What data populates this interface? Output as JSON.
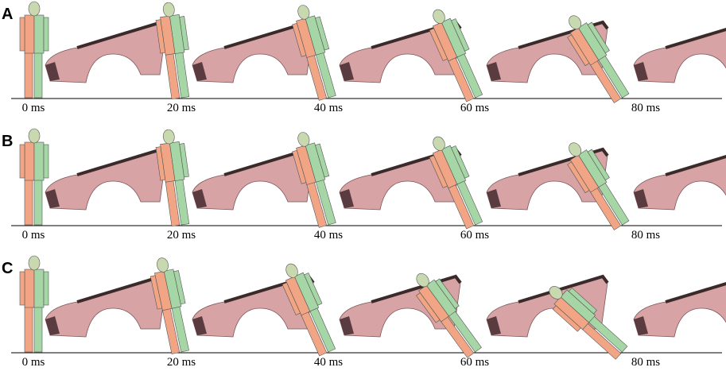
{
  "panels": [
    {
      "label": "A",
      "frames": [
        "0 ms",
        "20 ms",
        "40 ms",
        "60 ms",
        "80 ms"
      ]
    },
    {
      "label": "B",
      "frames": [
        "0 ms",
        "20 ms",
        "40 ms",
        "60 ms",
        "80 ms"
      ]
    },
    {
      "label": "C",
      "frames": [
        "0 ms",
        "20 ms",
        "40 ms",
        "60 ms",
        "80 ms"
      ]
    }
  ]
}
